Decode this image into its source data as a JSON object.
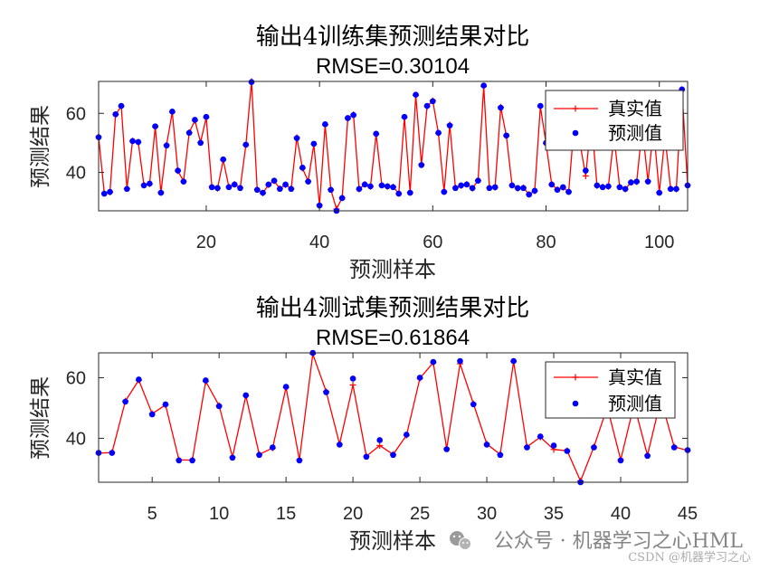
{
  "chart_data": [
    {
      "type": "line",
      "title": "输出4训练集预测结果对比",
      "subtitle": "RMSE=0.30104",
      "xlabel": "预测样本",
      "ylabel": "预测结果",
      "xlim": [
        1,
        105
      ],
      "ylim": [
        27.0,
        70.8
      ],
      "xticks": [
        20,
        40,
        60,
        80,
        100
      ],
      "yticks": [
        40,
        60
      ],
      "grid": false,
      "legend": "top-right",
      "x": [
        1,
        2,
        3,
        4,
        5,
        6,
        7,
        8,
        9,
        10,
        11,
        12,
        13,
        14,
        15,
        16,
        17,
        18,
        19,
        20,
        21,
        22,
        23,
        24,
        25,
        26,
        27,
        28,
        29,
        30,
        31,
        32,
        33,
        34,
        35,
        36,
        37,
        38,
        39,
        40,
        41,
        42,
        43,
        44,
        45,
        46,
        47,
        48,
        49,
        50,
        51,
        52,
        53,
        54,
        55,
        56,
        57,
        58,
        59,
        60,
        61,
        62,
        63,
        64,
        65,
        66,
        67,
        68,
        69,
        70,
        71,
        72,
        73,
        74,
        75,
        76,
        77,
        78,
        79,
        80,
        81,
        82,
        83,
        84,
        85,
        86,
        87,
        88,
        89,
        90,
        91,
        92,
        93,
        94,
        95,
        96,
        97,
        98,
        99,
        100,
        101,
        102,
        103,
        104,
        105
      ],
      "series": [
        {
          "name": "真实值",
          "color": "#ff0000",
          "line": true,
          "values": [
            52.1,
            32.9,
            33.3,
            59.6,
            62.4,
            34.5,
            50.7,
            50.2,
            35.7,
            36.1,
            55.4,
            33.2,
            49.3,
            60.4,
            40.5,
            37.0,
            53.5,
            57.6,
            50.2,
            58.6,
            35.1,
            34.6,
            44.2,
            35.1,
            36.0,
            34.8,
            49.2,
            70.8,
            34.2,
            33.0,
            35.8,
            37.1,
            34.5,
            35.8,
            34.5,
            51.8,
            41.4,
            37.0,
            49.5,
            28.9,
            56.1,
            34.2,
            27.6,
            31.4,
            58.2,
            59.6,
            34.3,
            36.0,
            35.2,
            53.0,
            35.7,
            35.2,
            35.1,
            32.9,
            58.6,
            33.2,
            66.1,
            42.7,
            62.3,
            64.3,
            53.2,
            33.5,
            56.1,
            34.8,
            35.5,
            36.0,
            34.6,
            37.3,
            69.2,
            34.8,
            34.9,
            62.1,
            52.3,
            35.7,
            34.6,
            34.8,
            32.6,
            33.7,
            62.3,
            49.8,
            36.0,
            34.2,
            34.9,
            33.5,
            57.2,
            49.8,
            38.8,
            58.2,
            35.5,
            35.1,
            35.2,
            52.2,
            35.1,
            34.3,
            36.7,
            36.8,
            55.2,
            37.0,
            54.8,
            33.2,
            52.2,
            34.5,
            34.3,
            67.9,
            35.7
          ]
        },
        {
          "name": "预测值",
          "color": "#0000ff",
          "line": false,
          "values": [
            51.9,
            32.8,
            33.4,
            59.7,
            62.5,
            34.4,
            50.6,
            50.3,
            35.6,
            36.2,
            55.6,
            33.1,
            49.1,
            60.6,
            40.6,
            36.9,
            53.4,
            57.8,
            50.0,
            58.8,
            35.0,
            34.7,
            44.4,
            35.0,
            35.9,
            34.7,
            49.4,
            70.6,
            34.1,
            33.1,
            35.9,
            37.2,
            34.4,
            35.9,
            34.4,
            51.6,
            41.6,
            36.9,
            49.7,
            28.8,
            56.3,
            34.1,
            27.0,
            31.3,
            58.4,
            59.4,
            34.4,
            35.9,
            35.3,
            53.1,
            35.6,
            35.3,
            35.0,
            32.8,
            58.8,
            33.1,
            66.3,
            42.5,
            62.5,
            64.1,
            53.4,
            33.4,
            55.9,
            34.7,
            35.6,
            35.9,
            34.7,
            37.2,
            69.4,
            34.7,
            35.0,
            61.9,
            52.5,
            35.6,
            34.7,
            34.7,
            32.5,
            33.8,
            62.5,
            50.0,
            35.9,
            34.1,
            35.0,
            33.4,
            57.0,
            50.0,
            40.6,
            58.0,
            35.6,
            35.0,
            35.3,
            52.0,
            35.0,
            34.4,
            36.6,
            36.9,
            55.0,
            36.9,
            55.0,
            33.1,
            52.0,
            34.4,
            34.4,
            68.1,
            35.6
          ]
        }
      ]
    },
    {
      "type": "line",
      "title": "输出4测试集预测结果对比",
      "subtitle": "RMSE=0.61864",
      "xlabel": "预测样本",
      "ylabel": "预测结果",
      "xlim": [
        1,
        45
      ],
      "ylim": [
        25.5,
        68.2
      ],
      "xticks": [
        5,
        10,
        15,
        20,
        25,
        30,
        35,
        40,
        45
      ],
      "yticks": [
        40,
        60
      ],
      "grid": false,
      "legend": "top-right",
      "x": [
        1,
        2,
        3,
        4,
        5,
        6,
        7,
        8,
        9,
        10,
        11,
        12,
        13,
        14,
        15,
        16,
        17,
        18,
        19,
        20,
        21,
        22,
        23,
        24,
        25,
        26,
        27,
        28,
        29,
        30,
        31,
        32,
        33,
        34,
        35,
        36,
        37,
        38,
        39,
        40,
        41,
        42,
        43,
        44,
        45
      ],
      "series": [
        {
          "name": "真实值",
          "color": "#ff0000",
          "line": true,
          "values": [
            35.1,
            35.3,
            52.3,
            59.2,
            48.1,
            51.0,
            32.9,
            32.8,
            58.8,
            50.8,
            33.8,
            54.0,
            34.7,
            36.8,
            56.8,
            32.9,
            67.8,
            55.4,
            38.1,
            57.6,
            34.1,
            37.6,
            34.7,
            41.0,
            59.8,
            65.0,
            36.6,
            64.6,
            51.4,
            38.1,
            34.7,
            65.3,
            37.2,
            40.4,
            36.3,
            35.9,
            25.9,
            37.2,
            50.3,
            32.9,
            51.2,
            34.4,
            52.8,
            37.2,
            36.0
          ]
        },
        {
          "name": "预测值",
          "color": "#0000ff",
          "line": false,
          "values": [
            35.2,
            35.2,
            52.1,
            59.4,
            47.9,
            51.2,
            32.7,
            32.7,
            59.1,
            50.6,
            33.6,
            54.2,
            34.5,
            37.0,
            57.0,
            32.7,
            68.2,
            55.2,
            37.9,
            59.7,
            33.9,
            39.4,
            34.5,
            41.2,
            60.0,
            65.2,
            36.4,
            65.5,
            51.2,
            37.9,
            34.5,
            65.5,
            37.0,
            40.6,
            37.6,
            35.8,
            25.5,
            37.0,
            50.0,
            32.7,
            51.0,
            34.2,
            53.0,
            37.0,
            36.1
          ]
        }
      ]
    }
  ],
  "watermark": {
    "icon": "wechat-icon",
    "text": "公众号 · 机器学习之心HML",
    "sub_text": "CSDN @机器学习之心"
  }
}
